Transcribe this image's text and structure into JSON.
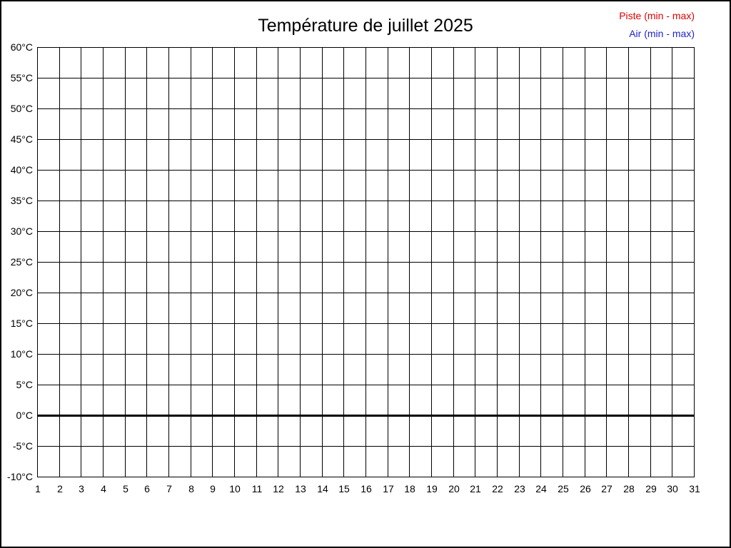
{
  "title": "Température de juillet 2025",
  "legend": {
    "piste": {
      "label": "Piste (min - max)",
      "color": "#dd0000"
    },
    "air": {
      "label": "Air (min - max)",
      "color": "#2222cc"
    }
  },
  "chart_data": {
    "type": "line",
    "title": "Température de juillet 2025",
    "xlabel": "",
    "ylabel": "",
    "x": [
      1,
      2,
      3,
      4,
      5,
      6,
      7,
      8,
      9,
      10,
      11,
      12,
      13,
      14,
      15,
      16,
      17,
      18,
      19,
      20,
      21,
      22,
      23,
      24,
      25,
      26,
      27,
      28,
      29,
      30,
      31
    ],
    "x_ticks": [
      "1",
      "2",
      "3",
      "4",
      "5",
      "6",
      "7",
      "8",
      "9",
      "10",
      "11",
      "12",
      "13",
      "14",
      "15",
      "16",
      "17",
      "18",
      "19",
      "20",
      "21",
      "22",
      "23",
      "24",
      "25",
      "26",
      "27",
      "28",
      "29",
      "30",
      "31"
    ],
    "y_ticks": [
      "60°C",
      "55°C",
      "50°C",
      "45°C",
      "40°C",
      "35°C",
      "30°C",
      "25°C",
      "20°C",
      "15°C",
      "10°C",
      "5°C",
      "0°C",
      "-5°C",
      "-10°C"
    ],
    "xlim": [
      1,
      31
    ],
    "ylim": [
      -10,
      60
    ],
    "y_step": 5,
    "grid": true,
    "grid_color": "#000000",
    "zero_line": {
      "value": 0,
      "thickness_px": 3,
      "color": "#000000"
    },
    "legend_position": "top-right",
    "series": [
      {
        "name": "Piste (min - max)",
        "color": "#dd0000",
        "values": []
      },
      {
        "name": "Air (min - max)",
        "color": "#2222cc",
        "values": []
      }
    ]
  }
}
